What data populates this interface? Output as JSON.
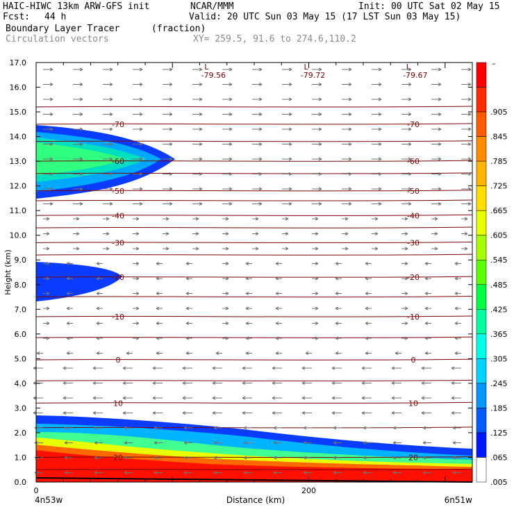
{
  "header": {
    "model": "HAIC-HIWC 13km ARW-GFS init",
    "center": "NCAR/MMM",
    "init": "Init: 00 UTC Sat 02 May 15",
    "fcst_label": "Fcst:",
    "fcst_value": "44 h",
    "valid": "Valid: 20 UTC Sun 03 May 15 (17 LST Sun 03 May 15)",
    "field": "Boundary Layer Tracer",
    "field_units": "(fraction)",
    "vectors": "Circulation vectors",
    "xy": "XY= 259.5, 91.6 to 274.6,110.2"
  },
  "chart_data": {
    "type": "cross-section",
    "ylabel": "Height (km)",
    "xlabel": "Distance (km)",
    "xlim": [
      0,
      320
    ],
    "ylim": [
      0,
      17
    ],
    "y_ticks": [
      "0.0",
      "1.0",
      "2.0",
      "3.0",
      "4.0",
      "5.0",
      "6.0",
      "7.0",
      "8.0",
      "9.0",
      "10.0",
      "11.0",
      "12.0",
      "13.0",
      "14.0",
      "15.0",
      "16.0",
      "17.0"
    ],
    "x_ticks": [
      {
        "value": 0,
        "label": "0"
      },
      {
        "value": 200,
        "label": "200"
      }
    ],
    "x_end_labels": {
      "left": "4n53w",
      "right": "6n51w"
    },
    "colorbar": {
      "top_label": "–",
      "labels": [
        ".905",
        ".845",
        ".785",
        ".725",
        ".665",
        ".605",
        ".545",
        ".485",
        ".425",
        ".365",
        ".305",
        ".245",
        ".185",
        ".125",
        ".065",
        ".005"
      ],
      "colors": [
        "#ff0000",
        "#ff2a00",
        "#ff5a00",
        "#ff8a00",
        "#ffb400",
        "#ffde00",
        "#e8ff00",
        "#a8ff00",
        "#5cff00",
        "#00ff40",
        "#00ffa0",
        "#00ffe8",
        "#00d4ff",
        "#0096ff",
        "#005aff",
        "#0018ff",
        "#ffffff"
      ]
    },
    "temperature_contours": [
      {
        "value": "-70",
        "y": 14.5
      },
      {
        "value": "-60",
        "y": 13.0
      },
      {
        "value": "-50",
        "y": 11.8
      },
      {
        "value": "-40",
        "y": 10.8
      },
      {
        "value": "-30",
        "y": 9.7
      },
      {
        "value": "-20",
        "y": 8.3
      },
      {
        "value": "-10",
        "y": 6.7
      },
      {
        "value": "0",
        "y": 4.95
      },
      {
        "value": "10",
        "y": 3.2
      },
      {
        "value": "20",
        "y": 1.0
      }
    ],
    "lows": [
      {
        "label": "L",
        "value": "-79.56",
        "x": 125
      },
      {
        "label": "L",
        "value": "-79.72",
        "x": 198
      },
      {
        "label": "L",
        "value": "-79.67",
        "x": 273
      }
    ]
  }
}
